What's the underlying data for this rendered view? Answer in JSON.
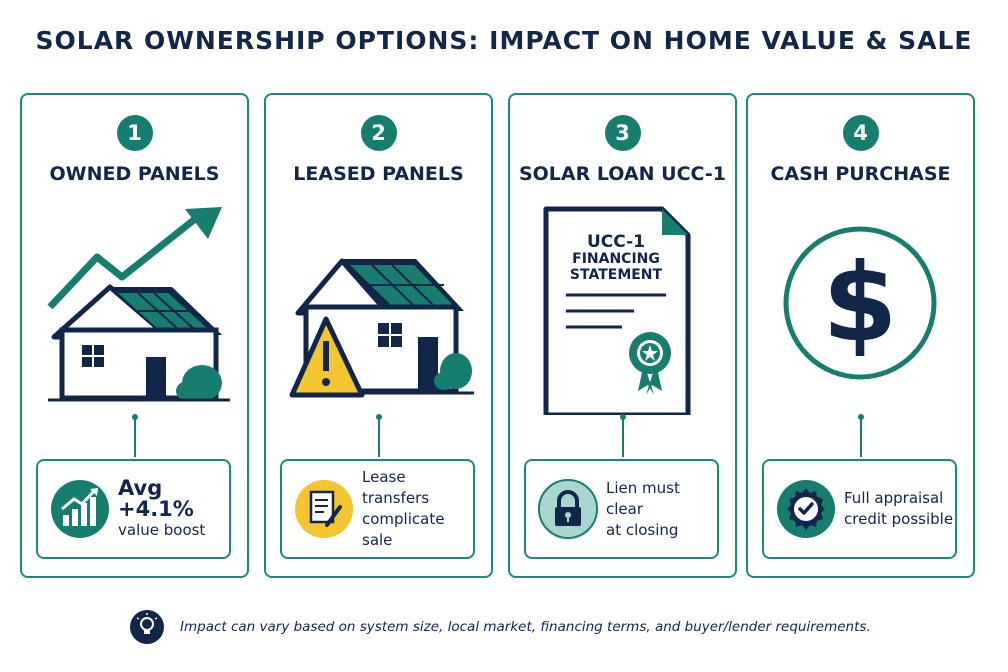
{
  "title": "SOLAR OWNERSHIP OPTIONS: IMPACT ON HOME VALUE & SALE",
  "colors": {
    "navy": "#12264a",
    "teal": "#177e6f",
    "warning": "#f2c531"
  },
  "cards": [
    {
      "number": "1",
      "title": "OWNED PANELS",
      "info_line1": "Avg +4.1%",
      "info_line2": "value boost",
      "icon": "trending-chart-icon"
    },
    {
      "number": "2",
      "title": "LEASED PANELS",
      "info_line1": "Lease transfers",
      "info_line2": "complicate sale",
      "icon": "document-pen-icon"
    },
    {
      "number": "3",
      "title": "SOLAR LOAN UCC-1",
      "doc_line1": "UCC-1",
      "doc_line2": "FINANCING",
      "doc_line3": "STATEMENT",
      "info_line1": "Lien must clear",
      "info_line2": "at closing",
      "icon": "lock-icon"
    },
    {
      "number": "4",
      "title": "CASH PURCHASE",
      "info_line1": "Full appraisal",
      "info_line2": "credit possible",
      "icon": "award-check-icon"
    }
  ],
  "footer": {
    "text": "Impact can vary based on system size, local market, financing terms, and buyer/lender requirements.",
    "icon": "lightbulb-icon"
  }
}
